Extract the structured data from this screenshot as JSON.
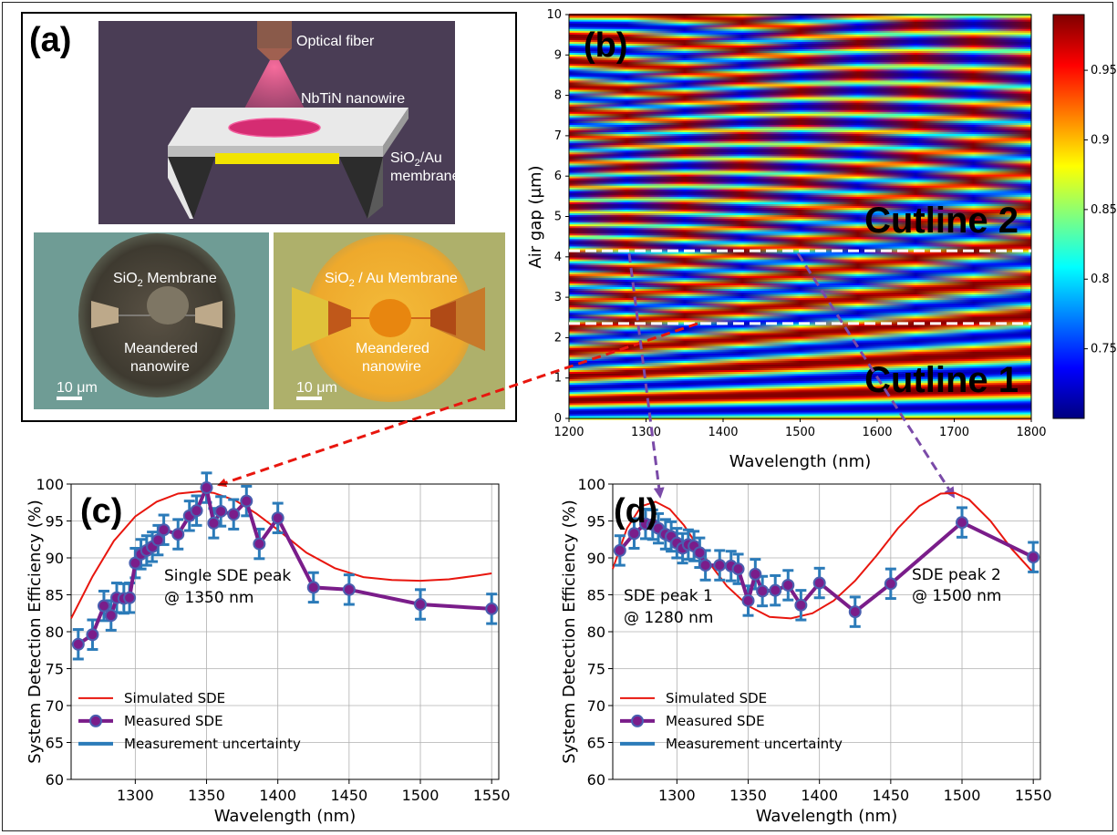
{
  "panel_a": {
    "letter": "(a)",
    "schematic": {
      "labels": [
        "Optical fiber",
        "NbTiN nanowire",
        "SiO",
        "2",
        "/Au",
        "membrane"
      ],
      "colors": {
        "bg": "#4a3d55",
        "laser": "#e0407a",
        "mirror": "#f2e400"
      }
    },
    "photo_left": {
      "title_a": "SiO",
      "title_sub": "2",
      "title_b": " Membrane",
      "label_1": "Meandered",
      "label_2": "nanowire",
      "scale": "10 μm"
    },
    "photo_right": {
      "title_a": "SiO",
      "title_sub": "2",
      "title_b": " / Au Membrane",
      "label_1": "Meandered",
      "label_2": "nanowire",
      "scale": "10 μm"
    }
  },
  "chart_data": [
    {
      "panel": "(b)",
      "type": "heatmap",
      "xlabel": "Wavelength (nm)",
      "ylabel": "Air gap (μm)",
      "xlim": [
        1200,
        1800
      ],
      "ylim": [
        0,
        10
      ],
      "xticks": [
        1200,
        1300,
        1400,
        1500,
        1600,
        1700,
        1800
      ],
      "yticks": [
        0,
        1,
        2,
        3,
        4,
        5,
        6,
        7,
        8,
        9,
        10
      ],
      "colorbar": {
        "ticks": [
          0.75,
          0.8,
          0.85,
          0.9,
          0.95
        ],
        "range": [
          0.7,
          0.99
        ],
        "colormap": "jet"
      },
      "cutlines": [
        {
          "label": "Cutline 1",
          "air_gap": 2.35
        },
        {
          "label": "Cutline 2",
          "air_gap": 4.15
        }
      ]
    },
    {
      "panel": "(c)",
      "type": "line",
      "xlabel": "Wavelength (nm)",
      "ylabel": "System Detection Efficiency (%)",
      "xlim": [
        1255,
        1555
      ],
      "ylim": [
        60,
        100
      ],
      "xticks": [
        1300,
        1350,
        1400,
        1450,
        1500,
        1550
      ],
      "yticks": [
        60,
        65,
        70,
        75,
        80,
        85,
        90,
        95,
        100
      ],
      "annotation": [
        "Single SDE peak",
        "@ 1350 nm"
      ],
      "legend": [
        "Simulated SDE",
        "Measured SDE",
        "Measurement uncertainty"
      ],
      "simulated": {
        "x": [
          1255,
          1270,
          1285,
          1300,
          1315,
          1330,
          1345,
          1355,
          1370,
          1385,
          1400,
          1420,
          1440,
          1460,
          1480,
          1500,
          1520,
          1540,
          1550
        ],
        "y": [
          81.8,
          87.5,
          92.3,
          95.6,
          97.6,
          98.7,
          99.0,
          98.8,
          97.8,
          96.0,
          93.8,
          90.7,
          88.6,
          87.4,
          87.0,
          86.9,
          87.1,
          87.6,
          87.9
        ]
      },
      "measured": {
        "x": [
          1260,
          1270,
          1278,
          1283,
          1287,
          1292,
          1296,
          1300,
          1304,
          1308,
          1312,
          1316,
          1320,
          1330,
          1338,
          1343,
          1350,
          1355,
          1360,
          1369,
          1378,
          1387,
          1400,
          1425,
          1450,
          1500,
          1550
        ],
        "y": [
          78.3,
          79.6,
          83.5,
          82.2,
          84.6,
          84.5,
          84.6,
          89.3,
          90.5,
          91.0,
          91.5,
          92.4,
          93.8,
          93.2,
          95.7,
          96.4,
          99.5,
          94.7,
          96.3,
          95.9,
          97.7,
          91.9,
          95.4,
          86.0,
          85.7,
          83.7,
          83.1
        ],
        "err": [
          2,
          2,
          2,
          2,
          2,
          2,
          2,
          2,
          2,
          2,
          2,
          2,
          2,
          2,
          2,
          2,
          2,
          2,
          2,
          2,
          2,
          2,
          2,
          2,
          2,
          2,
          2
        ]
      },
      "colors": {
        "simulated": "#e8160e",
        "measured": "#7a1d8a",
        "marker_edge": "#4a5fb0",
        "error": "#2b7bb9"
      }
    },
    {
      "panel": "(d)",
      "type": "line",
      "xlabel": "Wavelength (nm)",
      "ylabel": "System Detection Efficiency (%)",
      "xlim": [
        1255,
        1555
      ],
      "ylim": [
        60,
        100
      ],
      "xticks": [
        1300,
        1350,
        1400,
        1450,
        1500,
        1550
      ],
      "yticks": [
        60,
        65,
        70,
        75,
        80,
        85,
        90,
        95,
        100
      ],
      "annotation_1": [
        "SDE peak 1",
        "@ 1280 nm"
      ],
      "annotation_2": [
        "SDE peak 2",
        "@ 1500 nm"
      ],
      "legend": [
        "Simulated SDE",
        "Measured SDE",
        "Measurement uncertainty"
      ],
      "simulated": {
        "x": [
          1255,
          1265,
          1275,
          1285,
          1295,
          1305,
          1320,
          1335,
          1350,
          1365,
          1380,
          1395,
          1410,
          1425,
          1440,
          1455,
          1470,
          1485,
          1495,
          1505,
          1520,
          1535,
          1550
        ],
        "y": [
          88.5,
          94.0,
          97.0,
          97.6,
          96.6,
          94.4,
          90.0,
          86.2,
          83.5,
          82.0,
          81.8,
          82.5,
          84.2,
          86.9,
          90.3,
          94.0,
          97.0,
          98.7,
          98.8,
          97.9,
          95.0,
          91.2,
          88.0
        ]
      },
      "measured": {
        "x": [
          1260,
          1270,
          1278,
          1283,
          1287,
          1292,
          1296,
          1300,
          1304,
          1308,
          1312,
          1316,
          1320,
          1330,
          1338,
          1343,
          1350,
          1355,
          1360,
          1369,
          1378,
          1387,
          1400,
          1425,
          1450,
          1500,
          1550
        ],
        "y": [
          91.0,
          93.3,
          94.6,
          94.5,
          94.0,
          93.2,
          92.9,
          92.0,
          91.3,
          91.8,
          91.6,
          90.7,
          89.0,
          89.0,
          88.9,
          88.5,
          84.2,
          87.8,
          85.5,
          85.6,
          86.3,
          83.6,
          86.6,
          82.7,
          86.5,
          94.8,
          90.1
        ],
        "err": [
          2,
          2,
          2,
          2,
          2,
          2,
          2,
          2,
          2,
          2,
          2,
          2,
          2,
          2,
          2,
          2,
          2,
          2,
          2,
          2,
          2,
          2,
          2,
          2,
          2,
          2,
          2
        ]
      },
      "colors": {
        "simulated": "#e8160e",
        "measured": "#7a1d8a",
        "marker_edge": "#4a5fb0",
        "error": "#2b7bb9"
      }
    }
  ],
  "arrows": {
    "red": "#e8160e",
    "purple": "#7a4aa8"
  }
}
